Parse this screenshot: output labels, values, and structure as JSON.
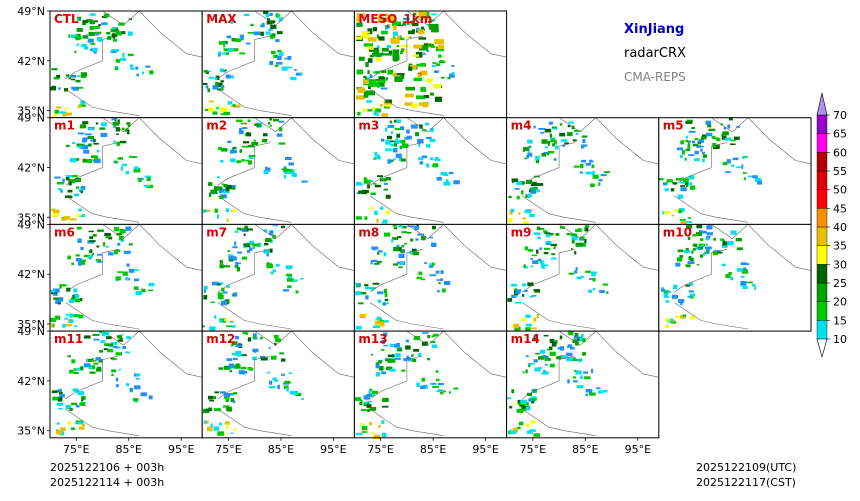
{
  "title": {
    "region": "XinJiang",
    "product": "radarCRX",
    "model": "CMA-REPS",
    "region_color": "#0000cc",
    "model_color": "#808080"
  },
  "panels": [
    [
      "CTL",
      "MAX",
      "MESO_1km"
    ],
    [
      "m1",
      "m2",
      "m3",
      "m4",
      "m5"
    ],
    [
      "m6",
      "m7",
      "m8",
      "m9",
      "m10"
    ],
    [
      "m11",
      "m12",
      "m13",
      "m14"
    ]
  ],
  "panel_label_color": "#dd0000",
  "axes": {
    "yticks": [
      "49°N",
      "42°N",
      "35°N"
    ],
    "ytick_values": [
      49,
      42,
      35
    ],
    "ylim": [
      34,
      49
    ],
    "xticks": [
      "75°E",
      "85°E",
      "95°E"
    ],
    "xtick_values": [
      75,
      85,
      95
    ],
    "xlim": [
      70,
      99
    ]
  },
  "colorbar": {
    "levels": [
      "10",
      "15",
      "20",
      "25",
      "30",
      "35",
      "40",
      "45",
      "50",
      "55",
      "60",
      "65",
      "70"
    ],
    "colors": [
      "#1e90ff",
      "#00e0ee",
      "#00c800",
      "#00a000",
      "#006400",
      "#ffff00",
      "#e6c000",
      "#ff8c00",
      "#ff0000",
      "#dd0000",
      "#b40000",
      "#ff00f0",
      "#9900cc",
      "#ad90f0"
    ]
  },
  "footer": {
    "init_utc": "2025122106  +  003h",
    "init_cst": "2025122114  +  003h",
    "valid_utc": "2025122109(UTC)",
    "valid_cst": "2025122117(CST)"
  },
  "chart_data": {
    "type": "heatmap",
    "variable": "radarCRX",
    "legend_levels": [
      10,
      15,
      20,
      25,
      30,
      35,
      40,
      45,
      50,
      55,
      60,
      65,
      70
    ],
    "region": "XinJiang",
    "lon_range": [
      70,
      99
    ],
    "lat_range": [
      34,
      49
    ]
  }
}
